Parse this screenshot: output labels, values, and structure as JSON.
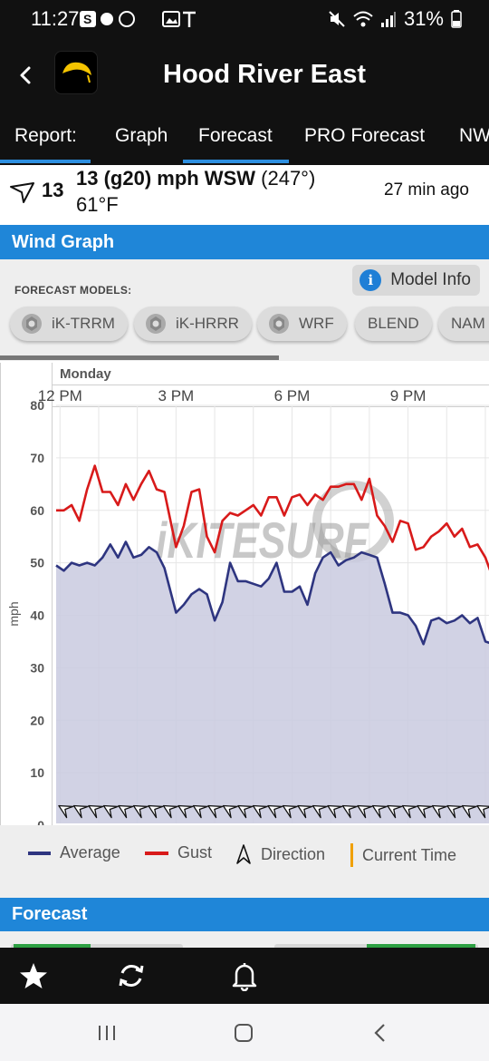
{
  "status_bar": {
    "time": "11:27",
    "battery": "31%"
  },
  "app": {
    "title": "Hood River East"
  },
  "tabs": [
    {
      "label": "Report:",
      "active": true
    },
    {
      "label": "Graph",
      "active": false
    },
    {
      "label": "Forecast",
      "active": true
    },
    {
      "label": "PRO Forecast",
      "active": false
    },
    {
      "label": "NW",
      "active": false
    }
  ],
  "current": {
    "speed_badge": "13",
    "wind_main": "13 (g20) mph WSW",
    "wind_dir": "(247°)",
    "temperature": "61°F",
    "updated": "27 min ago"
  },
  "wind_graph": {
    "header": "Wind Graph",
    "models_label": "FORECAST MODELS:",
    "model_info_label": "Model Info",
    "models": [
      "iK-TRRM",
      "iK-HRRR",
      "WRF",
      "BLEND",
      "NAM"
    ]
  },
  "chart_data": {
    "type": "line",
    "day_label": "Monday",
    "x_tick_labels": [
      "12 PM",
      "3 PM",
      "6 PM",
      "9 PM"
    ],
    "x_tick_hours": [
      12,
      15,
      18,
      21
    ],
    "x_range_hours": [
      11.9,
      23.2
    ],
    "ylabel": "mph",
    "ylim": [
      0,
      80
    ],
    "y_ticks": [
      0,
      10,
      20,
      30,
      40,
      50,
      60,
      70,
      80
    ],
    "grid": true,
    "watermark": "iKITESURF",
    "series": [
      {
        "name": "Average",
        "color": "#2e3580",
        "fill": true,
        "points": [
          [
            11.9,
            49.5
          ],
          [
            12.1,
            48.5
          ],
          [
            12.3,
            50
          ],
          [
            12.5,
            49.5
          ],
          [
            12.7,
            50
          ],
          [
            12.9,
            49.5
          ],
          [
            13.1,
            51
          ],
          [
            13.3,
            53.5
          ],
          [
            13.5,
            51
          ],
          [
            13.7,
            54
          ],
          [
            13.9,
            51
          ],
          [
            14.1,
            51.5
          ],
          [
            14.3,
            53
          ],
          [
            14.5,
            52
          ],
          [
            14.7,
            49
          ],
          [
            15.0,
            40.5
          ],
          [
            15.2,
            42
          ],
          [
            15.4,
            44
          ],
          [
            15.6,
            45
          ],
          [
            15.8,
            44
          ],
          [
            16.0,
            39
          ],
          [
            16.2,
            42.5
          ],
          [
            16.4,
            50
          ],
          [
            16.6,
            46.5
          ],
          [
            16.8,
            46.5
          ],
          [
            17.0,
            46
          ],
          [
            17.2,
            45.5
          ],
          [
            17.4,
            47
          ],
          [
            17.6,
            50
          ],
          [
            17.8,
            44.5
          ],
          [
            18.0,
            44.5
          ],
          [
            18.2,
            45.5
          ],
          [
            18.4,
            42
          ],
          [
            18.6,
            48
          ],
          [
            18.8,
            51
          ],
          [
            19.0,
            52
          ],
          [
            19.2,
            49.5
          ],
          [
            19.4,
            50.5
          ],
          [
            19.6,
            51
          ],
          [
            19.8,
            52
          ],
          [
            20.0,
            51.5
          ],
          [
            20.2,
            51
          ],
          [
            20.4,
            46
          ],
          [
            20.6,
            40.5
          ],
          [
            20.8,
            40.5
          ],
          [
            21.0,
            40
          ],
          [
            21.2,
            38
          ],
          [
            21.4,
            34.5
          ],
          [
            21.6,
            39
          ],
          [
            21.8,
            39.5
          ],
          [
            22.0,
            38.5
          ],
          [
            22.2,
            39
          ],
          [
            22.4,
            40
          ],
          [
            22.6,
            38.5
          ],
          [
            22.8,
            39.5
          ],
          [
            23.0,
            35
          ],
          [
            23.2,
            34.5
          ],
          [
            23.4,
            34.5
          ],
          [
            23.6,
            33.5
          ],
          [
            23.8,
            34.5
          ],
          [
            24.0,
            32.5
          ],
          [
            24.2,
            37
          ],
          [
            24.4,
            37.5
          ],
          [
            24.6,
            40
          ],
          [
            24.8,
            40.5
          ],
          [
            25.0,
            34
          ],
          [
            25.2,
            33
          ],
          [
            25.4,
            33.5
          ],
          [
            25.6,
            32.5
          ]
        ]
      },
      {
        "name": "Gust",
        "color": "#d81a1a",
        "fill": false,
        "points": [
          [
            11.9,
            60
          ],
          [
            12.1,
            60
          ],
          [
            12.3,
            61
          ],
          [
            12.5,
            58
          ],
          [
            12.7,
            64
          ],
          [
            12.9,
            68.5
          ],
          [
            13.1,
            63.5
          ],
          [
            13.3,
            63.5
          ],
          [
            13.5,
            61
          ],
          [
            13.7,
            65
          ],
          [
            13.9,
            62
          ],
          [
            14.1,
            65
          ],
          [
            14.3,
            67.5
          ],
          [
            14.5,
            64
          ],
          [
            14.7,
            63.5
          ],
          [
            15.0,
            53
          ],
          [
            15.2,
            57
          ],
          [
            15.4,
            63.5
          ],
          [
            15.6,
            64
          ],
          [
            15.8,
            55
          ],
          [
            16.0,
            52
          ],
          [
            16.2,
            58
          ],
          [
            16.4,
            59.5
          ],
          [
            16.6,
            59
          ],
          [
            16.8,
            60
          ],
          [
            17.0,
            61
          ],
          [
            17.2,
            59
          ],
          [
            17.4,
            62.5
          ],
          [
            17.6,
            62.5
          ],
          [
            17.8,
            59
          ],
          [
            18.0,
            62.5
          ],
          [
            18.2,
            63
          ],
          [
            18.4,
            61
          ],
          [
            18.6,
            63
          ],
          [
            18.8,
            62
          ],
          [
            19.0,
            64.5
          ],
          [
            19.2,
            64.5
          ],
          [
            19.4,
            65
          ],
          [
            19.6,
            65
          ],
          [
            19.8,
            62
          ],
          [
            20.0,
            66
          ],
          [
            20.2,
            59
          ],
          [
            20.4,
            57
          ],
          [
            20.6,
            54
          ],
          [
            20.8,
            58
          ],
          [
            21.0,
            57.5
          ],
          [
            21.2,
            52.5
          ],
          [
            21.4,
            53
          ],
          [
            21.6,
            55
          ],
          [
            21.8,
            56
          ],
          [
            22.0,
            57.5
          ],
          [
            22.2,
            55
          ],
          [
            22.4,
            56.5
          ],
          [
            22.6,
            53
          ],
          [
            22.8,
            53.5
          ],
          [
            23.0,
            51
          ],
          [
            23.2,
            47
          ],
          [
            23.4,
            49
          ],
          [
            23.6,
            45.5
          ],
          [
            23.8,
            45.5
          ],
          [
            24.0,
            45.5
          ],
          [
            24.2,
            47.5
          ],
          [
            24.4,
            48.5
          ],
          [
            24.6,
            49.5
          ],
          [
            24.8,
            48.5
          ],
          [
            25.0,
            46.5
          ],
          [
            25.2,
            42.5
          ],
          [
            25.4,
            43
          ],
          [
            25.6,
            44.5
          ]
        ]
      }
    ],
    "direction_arrows": "repeated along the x axis, pointing WSW",
    "legend": [
      "Average",
      "Gust",
      "Direction",
      "Current Time"
    ],
    "legend_colors": {
      "Average": "#2e3580",
      "Gust": "#d81a1a",
      "Current Time": "#f0a000"
    }
  },
  "forecast": {
    "header": "Forecast"
  },
  "bottom_nav": {
    "items": [
      "star-icon",
      "refresh-icon",
      "bell-icon"
    ]
  },
  "colors": {
    "accent": "#1f86d8",
    "dark": "#111111"
  }
}
